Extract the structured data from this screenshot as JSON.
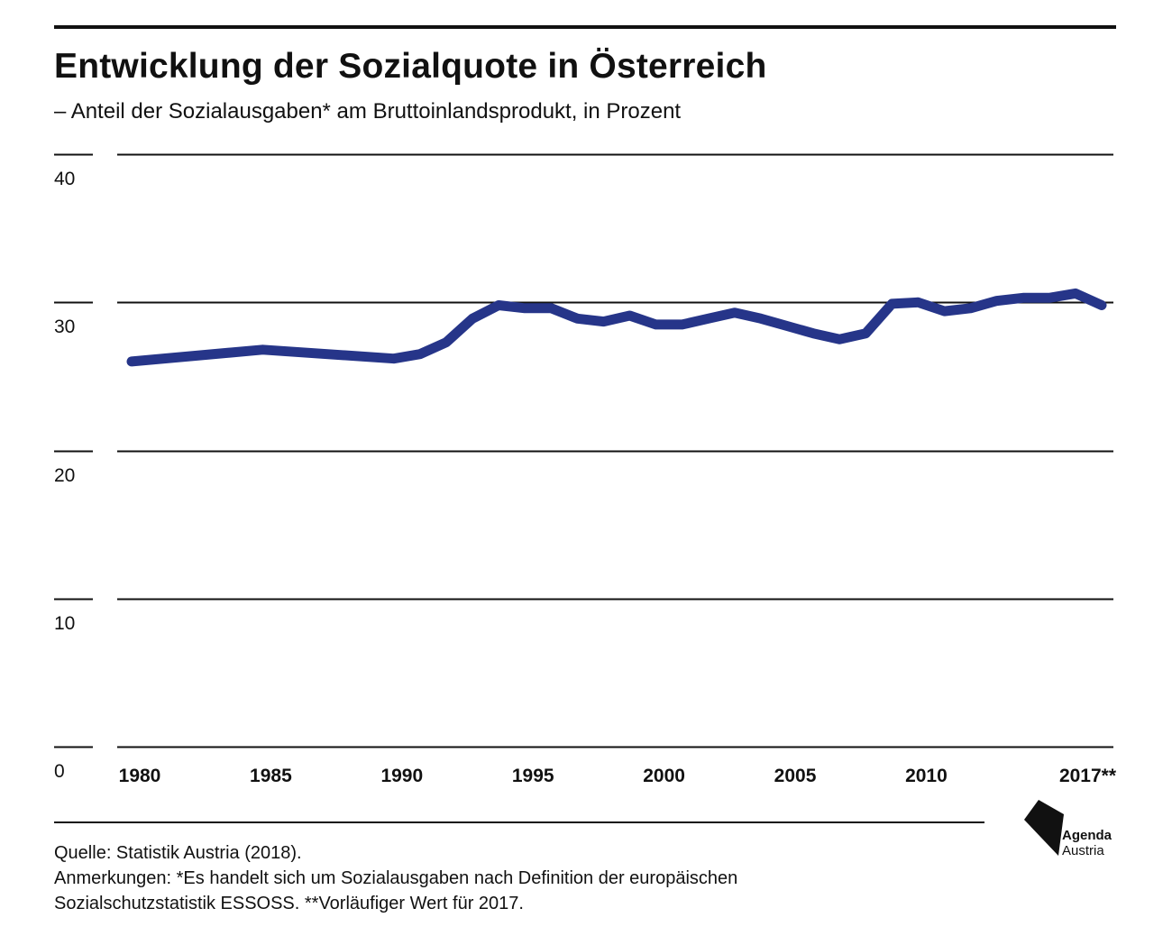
{
  "title": "Entwicklung der Sozialquote in Österreich",
  "subtitle": "– Anteil der Sozialausgaben* am Bruttoinlandsprodukt, in Prozent",
  "footer": {
    "source": "Quelle: Statistik Austria (2018).",
    "notes_line1": "Anmerkungen: *Es handelt sich um Sozialausgaben nach Definition der europäischen",
    "notes_line2": "Sozialschutzstatistik ESSOSS.  **Vorläufiger Wert für 2017."
  },
  "logo": {
    "line1": "Agenda",
    "line2": "Austria"
  },
  "colors": {
    "line": "#263589",
    "grid": "#111111",
    "text": "#111111"
  },
  "chart_data": {
    "type": "line",
    "title": "Entwicklung der Sozialquote in Österreich",
    "subtitle": "– Anteil der Sozialausgaben* am Bruttoinlandsprodukt, in Prozent",
    "xlabel": "",
    "ylabel": "",
    "ylim": [
      0,
      40
    ],
    "yticks": [
      0,
      10,
      20,
      30,
      40
    ],
    "ytick_labels": [
      "0",
      "10",
      "20",
      "30",
      "40"
    ],
    "xlim": [
      1980,
      2017
    ],
    "xticks": [
      1980,
      1985,
      1990,
      1995,
      2000,
      2005,
      2010,
      2017
    ],
    "xtick_labels": [
      "1980",
      "1985",
      "1990",
      "1995",
      "2000",
      "2005",
      "2010",
      "2017**"
    ],
    "grid": true,
    "legend": "none",
    "series": [
      {
        "x": [
          1980,
          1985,
          1990,
          1991,
          1992,
          1993,
          1994,
          1995,
          1996,
          1997,
          1998,
          1999,
          2000,
          2001,
          2002,
          2003,
          2004,
          2005,
          2006,
          2007,
          2008,
          2009,
          2010,
          2011,
          2012,
          2013,
          2014,
          2015,
          2016,
          2017
        ],
        "values": [
          26.0,
          26.8,
          26.2,
          26.5,
          27.3,
          28.9,
          29.8,
          29.6,
          29.6,
          28.9,
          28.7,
          29.1,
          28.5,
          28.5,
          28.9,
          29.3,
          28.9,
          28.4,
          27.9,
          27.5,
          27.9,
          29.9,
          30.0,
          29.4,
          29.6,
          30.1,
          30.3,
          30.3,
          30.6,
          29.8
        ]
      }
    ]
  }
}
